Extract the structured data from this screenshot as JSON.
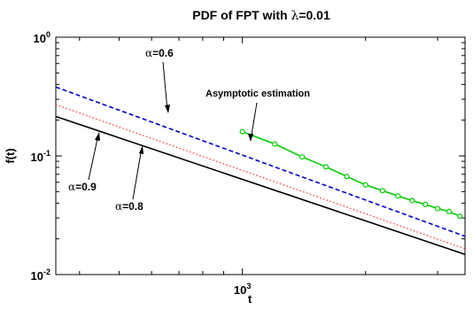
{
  "chart_data": {
    "type": "line",
    "title_prefix": "PDF of FPT with ",
    "title_symbol": "λ",
    "title_suffix": "=0.01",
    "xlabel": "t",
    "ylabel": "f(t)",
    "x_scale": "log",
    "y_scale": "log",
    "xlim": [
      350,
      3500
    ],
    "ylim": [
      0.01,
      1
    ],
    "x_ticks": [
      {
        "value": 1000,
        "base": "10",
        "exp": "3"
      }
    ],
    "y_ticks": [
      {
        "value": 0.01,
        "base": "10",
        "exp": "-2"
      },
      {
        "value": 0.1,
        "base": "10",
        "exp": "-1"
      },
      {
        "value": 1,
        "base": "10",
        "exp": "0"
      }
    ],
    "grid": false,
    "series": [
      {
        "name": "α=0.6",
        "color": "#0000cc",
        "style": "dashed",
        "x": [
          350,
          3500
        ],
        "y": [
          0.38,
          0.021
        ]
      },
      {
        "name": "α=0.8",
        "color": "#ff4444",
        "style": "dotted",
        "x": [
          350,
          3500
        ],
        "y": [
          0.27,
          0.0165
        ]
      },
      {
        "name": "α=0.9",
        "color": "#000000",
        "style": "solid",
        "x": [
          350,
          3500
        ],
        "y": [
          0.215,
          0.0148
        ]
      },
      {
        "name": "Asymptotic estimation",
        "color": "#00cc00",
        "style": "solid-markers",
        "x": [
          1000,
          1200,
          1400,
          1600,
          1800,
          2000,
          2200,
          2400,
          2600,
          2800,
          3000,
          3200,
          3400
        ],
        "y": [
          0.16,
          0.126,
          0.098,
          0.081,
          0.067,
          0.057,
          0.051,
          0.046,
          0.042,
          0.039,
          0.036,
          0.034,
          0.031
        ]
      }
    ],
    "annotations": {
      "a06": {
        "prefix": "α",
        "suffix": "=0.6"
      },
      "a08": {
        "prefix": "α",
        "suffix": "=0.8"
      },
      "a09": {
        "prefix": "α",
        "suffix": "=0.9"
      },
      "asym": "Asymptotic estimation"
    }
  }
}
